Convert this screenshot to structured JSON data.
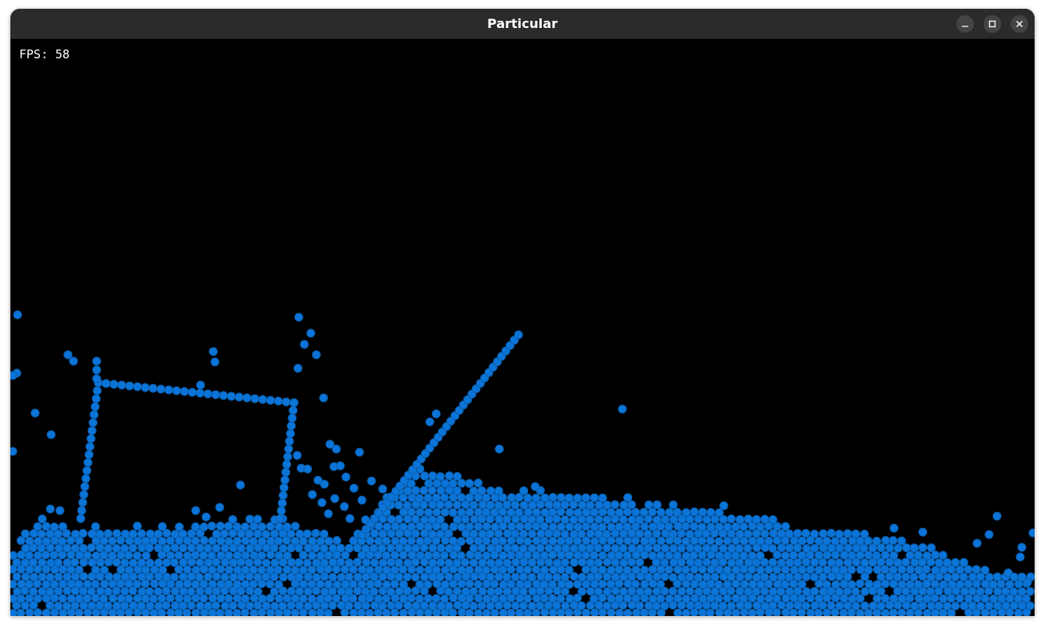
{
  "window": {
    "title": "Particular"
  },
  "hud": {
    "fps_text": "FPS: 58"
  },
  "colors": {
    "particle": "#0a74d8",
    "particle_dark": "#0b5fae",
    "background": "#000000",
    "titlebar": "#2b2b2b"
  },
  "icons": {
    "minimize": "minimize-icon",
    "maximize": "maximize-icon",
    "close": "close-icon"
  }
}
